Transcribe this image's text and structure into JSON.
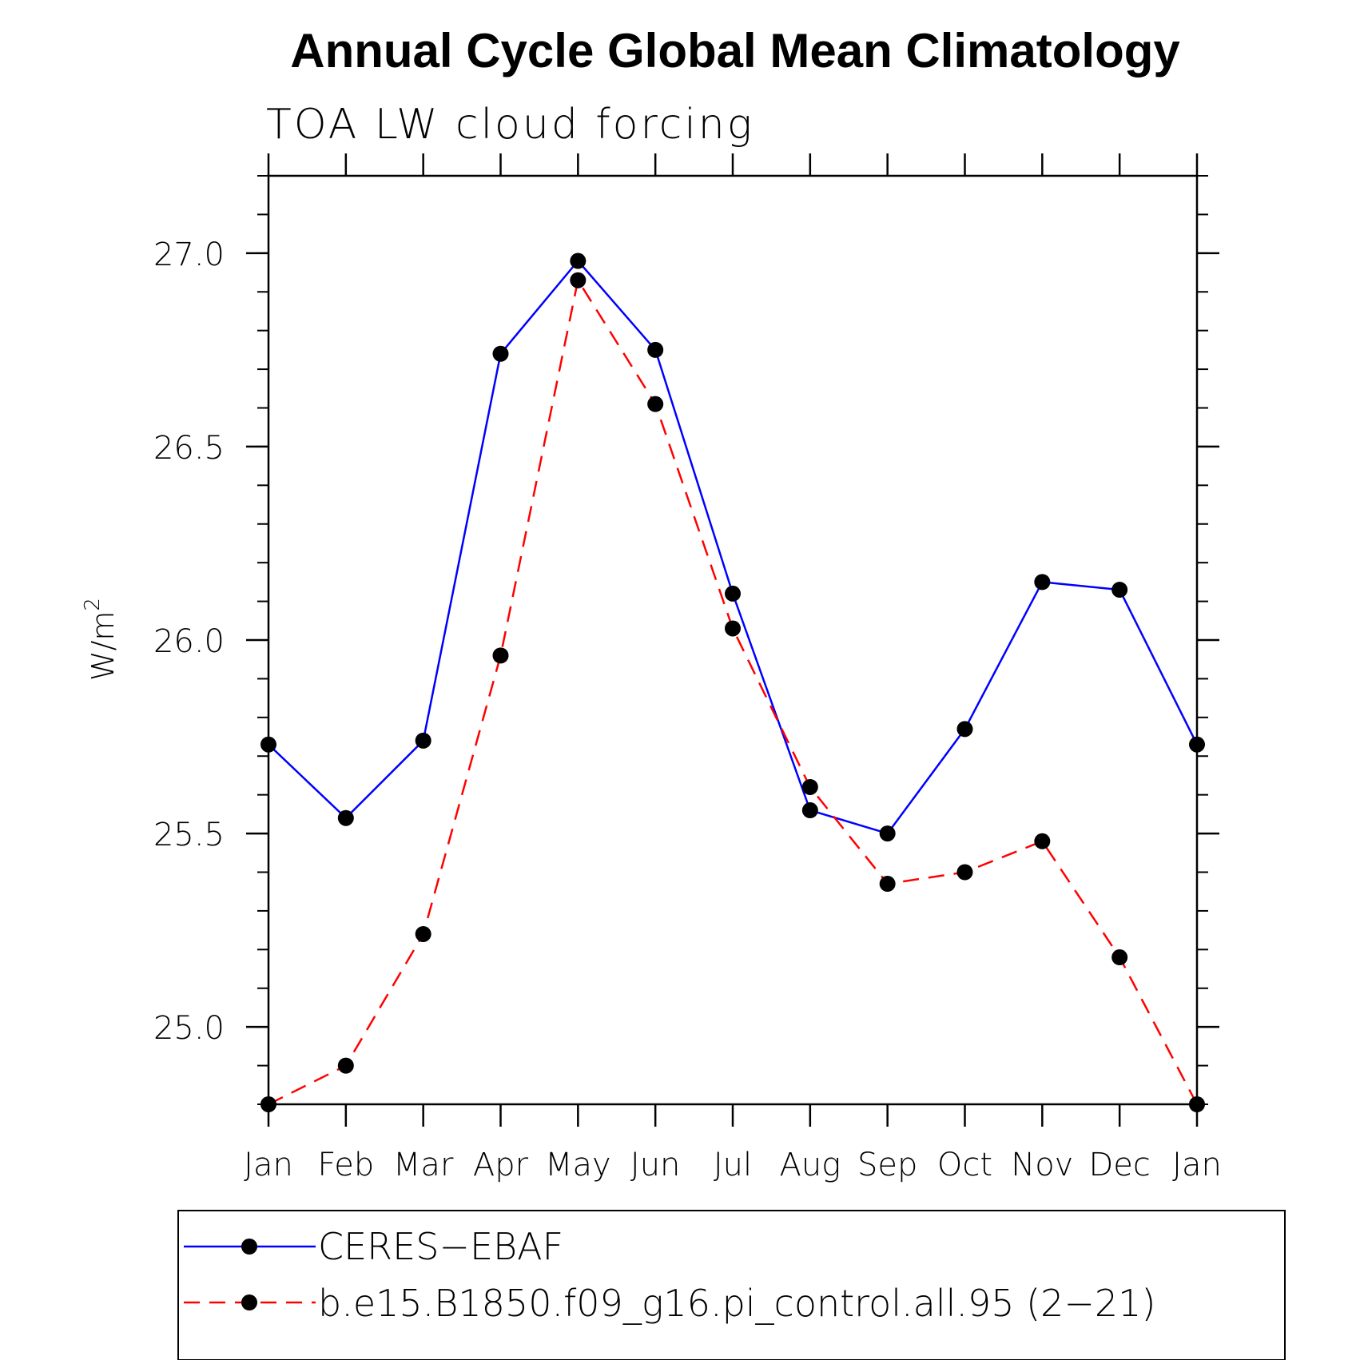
{
  "chart_data": {
    "type": "line",
    "title": "Annual Cycle Global Mean Climatology",
    "subtitle": "TOA LW cloud forcing",
    "ylabel": "W/m",
    "ylabel_sup": "2",
    "ylim": [
      24.8,
      27.2
    ],
    "yticks": [
      25.0,
      25.5,
      26.0,
      26.5,
      27.0
    ],
    "ytick_labels": [
      "25.0",
      "25.5",
      "26.0",
      "26.5",
      "27.0"
    ],
    "categories": [
      "Jan",
      "Feb",
      "Mar",
      "Apr",
      "May",
      "Jun",
      "Jul",
      "Aug",
      "Sep",
      "Oct",
      "Nov",
      "Dec",
      "Jan"
    ],
    "series": [
      {
        "name": "CERES−EBAF",
        "color": "#0000ff",
        "dash": "solid",
        "values": [
          25.73,
          25.54,
          25.74,
          26.74,
          26.98,
          26.75,
          26.12,
          25.56,
          25.5,
          25.77,
          26.15,
          26.13,
          25.73
        ]
      },
      {
        "name": "b.e15.B1850.f09_g16.pi_control.all.95 (2−21)",
        "color": "#ff0000",
        "dash": "dashed",
        "values": [
          24.8,
          24.9,
          25.24,
          25.96,
          26.93,
          26.61,
          26.03,
          25.62,
          25.37,
          25.4,
          25.48,
          25.18,
          24.8
        ]
      }
    ]
  }
}
